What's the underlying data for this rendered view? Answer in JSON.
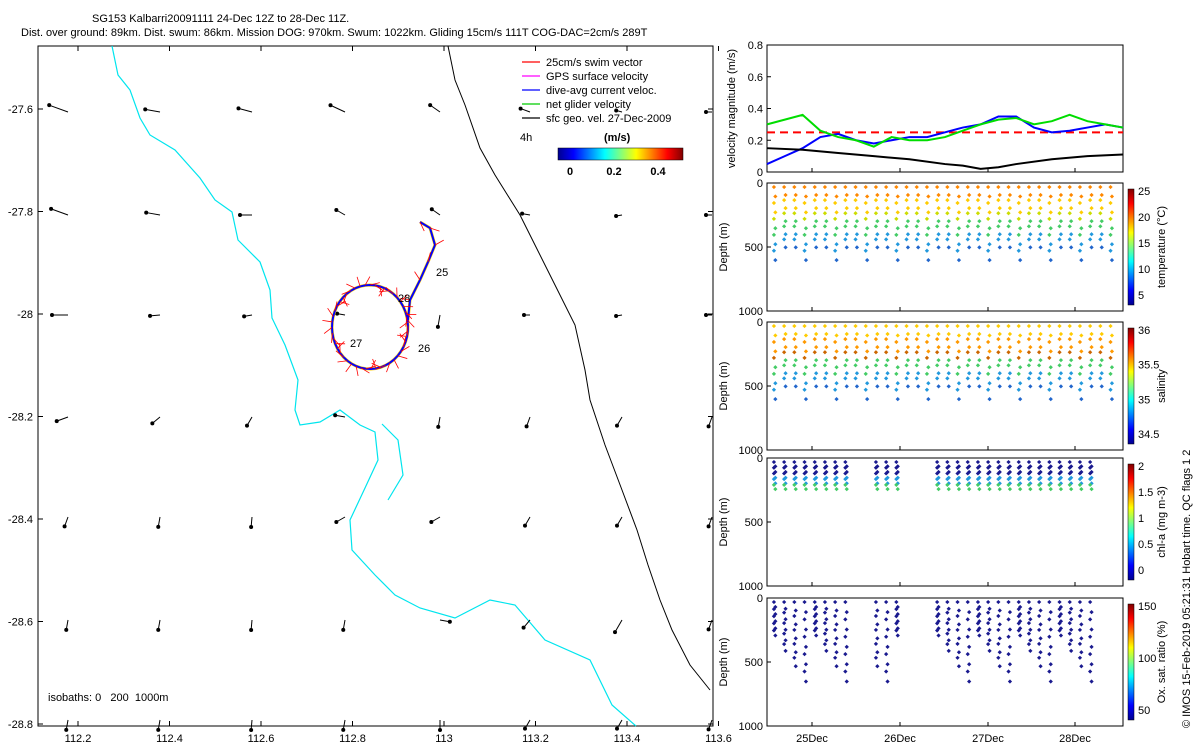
{
  "title": {
    "line1": "SG153 Kalbarri20091111 24-Dec 12Z to 28-Dec 11Z.",
    "line2": "Dist. over ground: 89km. Dist. swum: 86km. Mission DOG: 970km. Swum: 1022km. Gliding 15cm/s 111T COG-DAC=2cm/s 289T"
  },
  "map": {
    "legend": [
      "25cm/s swim vector",
      "GPS surface velocity",
      "dive-avg current veloc.",
      "net glider velocity",
      "sfc geo. vel. 27-Dec-2009"
    ],
    "legend_colors": [
      "#ff0000",
      "#ff00ff",
      "#0000ff",
      "#00cc00",
      "#000000"
    ],
    "cbar_time_label": "4h",
    "cbar_label": "(m/s)",
    "cbar_ticks": [
      "0",
      "0.2",
      "0.4"
    ],
    "isobaths_text": "isobaths: 0   200  1000m",
    "coast_color": "#00e5ee",
    "day_labels": [
      "25",
      "26",
      "27",
      "28"
    ],
    "xticks": [
      "112.2",
      "112.4",
      "112.6",
      "112.8",
      "113",
      "113.2",
      "113.4",
      "113.6"
    ],
    "yticks": [
      "-27.6",
      "-27.8",
      "-28",
      "-28.2",
      "-28.4",
      "-28.6",
      "-28.8"
    ]
  },
  "footer": "© IMOS 15-Feb-2019 05:21:31 Hobart time. QC flags 1  2",
  "chart_data": [
    {
      "type": "line",
      "ylabel": "velocity magnitude (m/s)",
      "ylim": [
        0,
        0.8
      ],
      "yticks": [
        "0",
        "0.2",
        "0.4",
        "0.6",
        "0.8"
      ],
      "x_domain": [
        "24-Dec 12Z",
        "28-Dec 11Z"
      ],
      "xticks": [
        "25Dec",
        "26Dec",
        "27Dec",
        "28Dec"
      ],
      "reference_line": {
        "value": 0.25,
        "color": "#ff0000"
      },
      "series": [
        {
          "color": "#0000ff",
          "x": [
            0,
            0.05,
            0.1,
            0.15,
            0.2,
            0.25,
            0.3,
            0.35,
            0.4,
            0.45,
            0.5,
            0.55,
            0.6,
            0.65,
            0.7,
            0.75,
            0.8,
            0.85,
            0.9,
            0.95,
            1.0
          ],
          "values": [
            0.05,
            0.1,
            0.15,
            0.22,
            0.24,
            0.2,
            0.18,
            0.2,
            0.22,
            0.22,
            0.25,
            0.28,
            0.3,
            0.35,
            0.35,
            0.28,
            0.25,
            0.26,
            0.28,
            0.3,
            0.28
          ]
        },
        {
          "color": "#00dd00",
          "x": [
            0,
            0.05,
            0.1,
            0.15,
            0.2,
            0.25,
            0.3,
            0.35,
            0.4,
            0.45,
            0.5,
            0.55,
            0.6,
            0.65,
            0.7,
            0.75,
            0.8,
            0.85,
            0.9,
            0.95,
            1.0
          ],
          "values": [
            0.3,
            0.33,
            0.36,
            0.26,
            0.22,
            0.2,
            0.16,
            0.22,
            0.2,
            0.2,
            0.22,
            0.26,
            0.3,
            0.33,
            0.34,
            0.3,
            0.32,
            0.36,
            0.32,
            0.3,
            0.28
          ]
        },
        {
          "color": "#000000",
          "x": [
            0,
            0.1,
            0.2,
            0.3,
            0.4,
            0.5,
            0.55,
            0.6,
            0.65,
            0.7,
            0.8,
            0.9,
            1.0
          ],
          "values": [
            0.15,
            0.14,
            0.12,
            0.1,
            0.08,
            0.05,
            0.04,
            0.02,
            0.03,
            0.05,
            0.08,
            0.1,
            0.11
          ]
        }
      ]
    },
    {
      "type": "scatter",
      "ylabel": "Depth (m)",
      "ylim": [
        1000,
        0
      ],
      "yticks": [
        "0",
        "500",
        "1000"
      ],
      "cbar_label": "temperature (°C)",
      "cbar_ticks": [
        "5",
        "10",
        "15",
        "20",
        "25"
      ],
      "xticks": [
        "25Dec",
        "26Dec",
        "27Dec",
        "28Dec"
      ]
    },
    {
      "type": "scatter",
      "ylabel": "Depth (m)",
      "ylim": [
        1000,
        0
      ],
      "yticks": [
        "0",
        "500",
        "1000"
      ],
      "cbar_label": "salinity",
      "cbar_ticks": [
        "34.5",
        "35",
        "35.5",
        "36"
      ],
      "xticks": [
        "25Dec",
        "26Dec",
        "27Dec",
        "28Dec"
      ]
    },
    {
      "type": "scatter",
      "ylabel": "Depth (m)",
      "ylim": [
        1000,
        0
      ],
      "yticks": [
        "0",
        "500",
        "1000"
      ],
      "cbar_label": "chl-a (mg m-3)",
      "cbar_ticks": [
        "0",
        "0.5",
        "1",
        "1.5",
        "2"
      ],
      "xticks": [
        "25Dec",
        "26Dec",
        "27Dec",
        "28Dec"
      ]
    },
    {
      "type": "scatter",
      "ylabel": "Depth (m)",
      "ylim": [
        1000,
        0
      ],
      "yticks": [
        "0",
        "500",
        "1000"
      ],
      "cbar_label": "Ox. sat. ratio (%)",
      "cbar_ticks": [
        "50",
        "100",
        "150"
      ],
      "xticks": [
        "25Dec",
        "26Dec",
        "27Dec",
        "28Dec"
      ]
    }
  ]
}
